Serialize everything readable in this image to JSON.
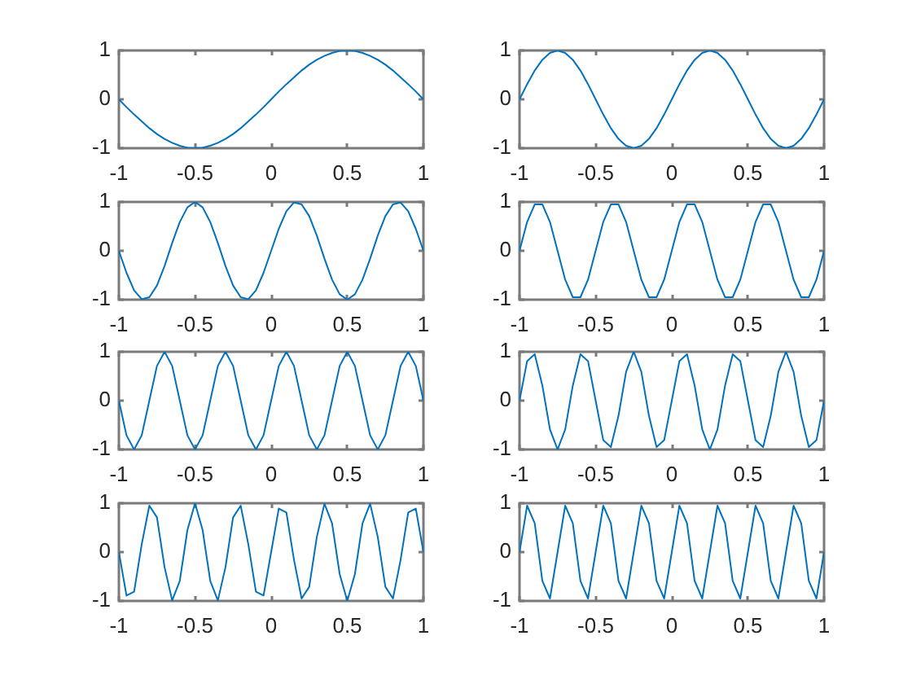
{
  "chart_data": [
    {
      "type": "line",
      "color": "#0072bd",
      "xlim": [
        -1,
        1
      ],
      "ylim": [
        -1,
        1
      ],
      "xticks": [
        -1,
        -0.5,
        0,
        0.5,
        1
      ],
      "yticks": [
        -1,
        0,
        1
      ],
      "x": [
        -1,
        -0.95,
        -0.9,
        -0.85,
        -0.8,
        -0.75,
        -0.7,
        -0.65,
        -0.6,
        -0.55,
        -0.5,
        -0.45,
        -0.4,
        -0.35,
        -0.3,
        -0.25,
        -0.2,
        -0.15,
        -0.1,
        -0.05,
        0,
        0.05,
        0.1,
        0.15,
        0.2,
        0.25,
        0.3,
        0.35,
        0.4,
        0.45,
        0.5,
        0.55,
        0.6,
        0.65,
        0.7,
        0.75,
        0.8,
        0.85,
        0.9,
        0.95,
        1
      ],
      "values": [
        0,
        -0.16,
        -0.31,
        -0.45,
        -0.59,
        -0.71,
        -0.81,
        -0.89,
        -0.95,
        -0.99,
        -1,
        -0.99,
        -0.95,
        -0.89,
        -0.81,
        -0.71,
        -0.59,
        -0.45,
        -0.31,
        -0.16,
        0,
        0.16,
        0.31,
        0.45,
        0.59,
        0.71,
        0.81,
        0.89,
        0.95,
        0.99,
        1,
        0.99,
        0.95,
        0.89,
        0.81,
        0.71,
        0.59,
        0.45,
        0.31,
        0.16,
        0
      ]
    },
    {
      "type": "line",
      "color": "#0072bd",
      "xlim": [
        -1,
        1
      ],
      "ylim": [
        -1,
        1
      ],
      "xticks": [
        -1,
        -0.5,
        0,
        0.5,
        1
      ],
      "yticks": [
        -1,
        0,
        1
      ],
      "x": [
        -1,
        -0.95,
        -0.9,
        -0.85,
        -0.8,
        -0.75,
        -0.7,
        -0.65,
        -0.6,
        -0.55,
        -0.5,
        -0.45,
        -0.4,
        -0.35,
        -0.3,
        -0.25,
        -0.2,
        -0.15,
        -0.1,
        -0.05,
        0,
        0.05,
        0.1,
        0.15,
        0.2,
        0.25,
        0.3,
        0.35,
        0.4,
        0.45,
        0.5,
        0.55,
        0.6,
        0.65,
        0.7,
        0.75,
        0.8,
        0.85,
        0.9,
        0.95,
        1
      ],
      "values": [
        0,
        0.31,
        0.59,
        0.81,
        0.95,
        1,
        0.95,
        0.81,
        0.59,
        0.31,
        0,
        -0.31,
        -0.59,
        -0.81,
        -0.95,
        -1,
        -0.95,
        -0.81,
        -0.59,
        -0.31,
        0,
        0.31,
        0.59,
        0.81,
        0.95,
        1,
        0.95,
        0.81,
        0.59,
        0.31,
        0,
        -0.31,
        -0.59,
        -0.81,
        -0.95,
        -1,
        -0.95,
        -0.81,
        -0.59,
        -0.31,
        0
      ]
    },
    {
      "type": "line",
      "color": "#0072bd",
      "xlim": [
        -1,
        1
      ],
      "ylim": [
        -1,
        1
      ],
      "xticks": [
        -1,
        -0.5,
        0,
        0.5,
        1
      ],
      "yticks": [
        -1,
        0,
        1
      ],
      "x": [
        -1,
        -0.95,
        -0.9,
        -0.85,
        -0.8,
        -0.75,
        -0.7,
        -0.65,
        -0.6,
        -0.55,
        -0.5,
        -0.45,
        -0.4,
        -0.35,
        -0.3,
        -0.25,
        -0.2,
        -0.15,
        -0.1,
        -0.05,
        0,
        0.05,
        0.1,
        0.15,
        0.2,
        0.25,
        0.3,
        0.35,
        0.4,
        0.45,
        0.5,
        0.55,
        0.6,
        0.65,
        0.7,
        0.75,
        0.8,
        0.85,
        0.9,
        0.95,
        1
      ],
      "values": [
        0,
        -0.45,
        -0.81,
        -0.99,
        -0.95,
        -0.71,
        -0.31,
        0.16,
        0.59,
        0.89,
        1,
        0.89,
        0.59,
        0.16,
        -0.31,
        -0.71,
        -0.95,
        -0.99,
        -0.81,
        -0.45,
        0,
        0.45,
        0.81,
        0.99,
        0.95,
        0.71,
        0.31,
        -0.16,
        -0.59,
        -0.89,
        -1,
        -0.89,
        -0.59,
        -0.16,
        0.31,
        0.71,
        0.95,
        0.99,
        0.81,
        0.45,
        0
      ]
    },
    {
      "type": "line",
      "color": "#0072bd",
      "xlim": [
        -1,
        1
      ],
      "ylim": [
        -1,
        1
      ],
      "xticks": [
        -1,
        -0.5,
        0,
        0.5,
        1
      ],
      "yticks": [
        -1,
        0,
        1
      ],
      "x": [
        -1,
        -0.95,
        -0.9,
        -0.85,
        -0.8,
        -0.75,
        -0.7,
        -0.65,
        -0.6,
        -0.55,
        -0.5,
        -0.45,
        -0.4,
        -0.35,
        -0.3,
        -0.25,
        -0.2,
        -0.15,
        -0.1,
        -0.05,
        0,
        0.05,
        0.1,
        0.15,
        0.2,
        0.25,
        0.3,
        0.35,
        0.4,
        0.45,
        0.5,
        0.55,
        0.6,
        0.65,
        0.7,
        0.75,
        0.8,
        0.85,
        0.9,
        0.95,
        1
      ],
      "values": [
        0,
        0.59,
        0.95,
        0.95,
        0.59,
        0,
        -0.59,
        -0.95,
        -0.95,
        -0.59,
        0,
        0.59,
        0.95,
        0.95,
        0.59,
        0,
        -0.59,
        -0.95,
        -0.95,
        -0.59,
        0,
        0.59,
        0.95,
        0.95,
        0.59,
        0,
        -0.59,
        -0.95,
        -0.95,
        -0.59,
        0,
        0.59,
        0.95,
        0.95,
        0.59,
        0,
        -0.59,
        -0.95,
        -0.95,
        -0.59,
        0
      ]
    },
    {
      "type": "line",
      "color": "#0072bd",
      "xlim": [
        -1,
        1
      ],
      "ylim": [
        -1,
        1
      ],
      "xticks": [
        -1,
        -0.5,
        0,
        0.5,
        1
      ],
      "yticks": [
        -1,
        0,
        1
      ],
      "x": [
        -1,
        -0.95,
        -0.9,
        -0.85,
        -0.8,
        -0.75,
        -0.7,
        -0.65,
        -0.6,
        -0.55,
        -0.5,
        -0.45,
        -0.4,
        -0.35,
        -0.3,
        -0.25,
        -0.2,
        -0.15,
        -0.1,
        -0.05,
        0,
        0.05,
        0.1,
        0.15,
        0.2,
        0.25,
        0.3,
        0.35,
        0.4,
        0.45,
        0.5,
        0.55,
        0.6,
        0.65,
        0.7,
        0.75,
        0.8,
        0.85,
        0.9,
        0.95,
        1
      ],
      "values": [
        0,
        -0.71,
        -1,
        -0.71,
        0,
        0.71,
        1,
        0.71,
        0,
        -0.71,
        -1,
        -0.71,
        0,
        0.71,
        1,
        0.71,
        0,
        -0.71,
        -1,
        -0.71,
        0,
        0.71,
        1,
        0.71,
        0,
        -0.71,
        -1,
        -0.71,
        0,
        0.71,
        1,
        0.71,
        0,
        -0.71,
        -1,
        -0.71,
        0,
        0.71,
        1,
        0.71,
        0
      ]
    },
    {
      "type": "line",
      "color": "#0072bd",
      "xlim": [
        -1,
        1
      ],
      "ylim": [
        -1,
        1
      ],
      "xticks": [
        -1,
        -0.5,
        0,
        0.5,
        1
      ],
      "yticks": [
        -1,
        0,
        1
      ],
      "x": [
        -1,
        -0.95,
        -0.9,
        -0.85,
        -0.8,
        -0.75,
        -0.7,
        -0.65,
        -0.6,
        -0.55,
        -0.5,
        -0.45,
        -0.4,
        -0.35,
        -0.3,
        -0.25,
        -0.2,
        -0.15,
        -0.1,
        -0.05,
        0,
        0.05,
        0.1,
        0.15,
        0.2,
        0.25,
        0.3,
        0.35,
        0.4,
        0.45,
        0.5,
        0.55,
        0.6,
        0.65,
        0.7,
        0.75,
        0.8,
        0.85,
        0.9,
        0.95,
        1
      ],
      "values": [
        0,
        0.81,
        0.95,
        0.31,
        -0.59,
        -1,
        -0.59,
        0.31,
        0.95,
        0.81,
        0,
        -0.81,
        -0.95,
        -0.31,
        0.59,
        1,
        0.59,
        -0.31,
        -0.95,
        -0.81,
        0,
        0.81,
        0.95,
        0.31,
        -0.59,
        -1,
        -0.59,
        0.31,
        0.95,
        0.81,
        0,
        -0.81,
        -0.95,
        -0.31,
        0.59,
        1,
        0.59,
        -0.31,
        -0.95,
        -0.81,
        0
      ]
    },
    {
      "type": "line",
      "color": "#0072bd",
      "xlim": [
        -1,
        1
      ],
      "ylim": [
        -1,
        1
      ],
      "xticks": [
        -1,
        -0.5,
        0,
        0.5,
        1
      ],
      "yticks": [
        -1,
        0,
        1
      ],
      "x": [
        -1,
        -0.95,
        -0.9,
        -0.85,
        -0.8,
        -0.75,
        -0.7,
        -0.65,
        -0.6,
        -0.55,
        -0.5,
        -0.45,
        -0.4,
        -0.35,
        -0.3,
        -0.25,
        -0.2,
        -0.15,
        -0.1,
        -0.05,
        0,
        0.05,
        0.1,
        0.15,
        0.2,
        0.25,
        0.3,
        0.35,
        0.4,
        0.45,
        0.5,
        0.55,
        0.6,
        0.65,
        0.7,
        0.75,
        0.8,
        0.85,
        0.9,
        0.95,
        1
      ],
      "values": [
        0,
        -0.89,
        -0.81,
        0.16,
        0.95,
        0.71,
        -0.31,
        -0.99,
        -0.59,
        0.45,
        1,
        0.45,
        -0.59,
        -0.99,
        -0.31,
        0.71,
        0.95,
        0.16,
        -0.81,
        -0.89,
        0,
        0.89,
        0.81,
        -0.16,
        -0.95,
        -0.71,
        0.31,
        0.99,
        0.59,
        -0.45,
        -1,
        -0.45,
        0.59,
        0.99,
        0.31,
        -0.71,
        -0.95,
        -0.16,
        0.81,
        0.89,
        0
      ]
    },
    {
      "type": "line",
      "color": "#0072bd",
      "xlim": [
        -1,
        1
      ],
      "ylim": [
        -1,
        1
      ],
      "xticks": [
        -1,
        -0.5,
        0,
        0.5,
        1
      ],
      "yticks": [
        -1,
        0,
        1
      ],
      "x": [
        -1,
        -0.95,
        -0.9,
        -0.85,
        -0.8,
        -0.75,
        -0.7,
        -0.65,
        -0.6,
        -0.55,
        -0.5,
        -0.45,
        -0.4,
        -0.35,
        -0.3,
        -0.25,
        -0.2,
        -0.15,
        -0.1,
        -0.05,
        0,
        0.05,
        0.1,
        0.15,
        0.2,
        0.25,
        0.3,
        0.35,
        0.4,
        0.45,
        0.5,
        0.55,
        0.6,
        0.65,
        0.7,
        0.75,
        0.8,
        0.85,
        0.9,
        0.95,
        1
      ],
      "values": [
        0,
        0.95,
        0.59,
        -0.59,
        -0.95,
        0,
        0.95,
        0.59,
        -0.59,
        -0.95,
        0,
        0.95,
        0.59,
        -0.59,
        -0.95,
        0,
        0.95,
        0.59,
        -0.59,
        -0.95,
        0,
        0.95,
        0.59,
        -0.59,
        -0.95,
        0,
        0.95,
        0.59,
        -0.59,
        -0.95,
        0,
        0.95,
        0.59,
        -0.59,
        -0.95,
        0,
        0.95,
        0.59,
        -0.59,
        -0.95,
        0
      ]
    }
  ]
}
